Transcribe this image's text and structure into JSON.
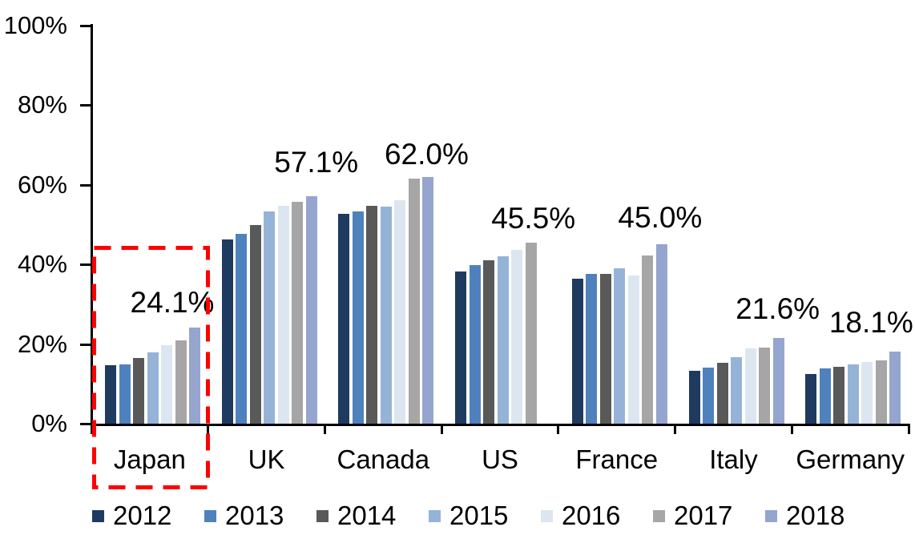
{
  "chart_data": {
    "type": "bar",
    "title": "",
    "categories": [
      "Japan",
      "UK",
      "Canada",
      "US",
      "France",
      "Italy",
      "Germany"
    ],
    "series": [
      {
        "name": "2012",
        "color": "#1F3A5F",
        "values": [
          14.6,
          46.2,
          52.8,
          38.2,
          36.4,
          13.2,
          12.4
        ]
      },
      {
        "name": "2013",
        "color": "#4F81BD",
        "values": [
          14.8,
          47.7,
          53.3,
          39.9,
          37.7,
          14.0,
          13.8
        ]
      },
      {
        "name": "2014",
        "color": "#595959",
        "values": [
          16.4,
          49.8,
          54.8,
          41.0,
          37.6,
          15.3,
          14.3
        ]
      },
      {
        "name": "2015",
        "color": "#95B3D7",
        "values": [
          17.9,
          53.3,
          54.6,
          42.0,
          39.1,
          16.7,
          14.8
        ]
      },
      {
        "name": "2016",
        "color": "#DCE6F1",
        "values": [
          19.8,
          54.8,
          56.1,
          43.6,
          37.3,
          18.9,
          15.4
        ]
      },
      {
        "name": "2017",
        "color": "#A6A6A6",
        "values": [
          21.0,
          55.7,
          61.5,
          45.5,
          42.3,
          19.1,
          15.9
        ]
      },
      {
        "name": "2018",
        "color": "#95A5CE",
        "values": [
          24.1,
          57.1,
          62.0,
          null,
          45.0,
          21.6,
          18.1
        ]
      }
    ],
    "data_labels": [
      "24.1%",
      "57.1%",
      "62.0%",
      "45.5%",
      "45.0%",
      "21.6%",
      "18.1%"
    ],
    "y_axis": {
      "min": 0,
      "max": 100,
      "tick_labels": [
        "0%",
        "20%",
        "40%",
        "60%",
        "80%",
        "100%"
      ]
    },
    "x_axis": {
      "labels": [
        "Japan",
        "UK",
        "Canada",
        "US",
        "France",
        "Italy",
        "Germany"
      ]
    },
    "legend": {
      "position": "bottom",
      "items": [
        "2012",
        "2013",
        "2014",
        "2015",
        "2016",
        "2017",
        "2018"
      ]
    },
    "grid": false,
    "highlight": {
      "type": "dashed-box",
      "category": "Japan",
      "color": "#FF0000"
    },
    "colors": {
      "axis": "#000000",
      "text": "#000000",
      "background": "#FFFFFF"
    }
  }
}
